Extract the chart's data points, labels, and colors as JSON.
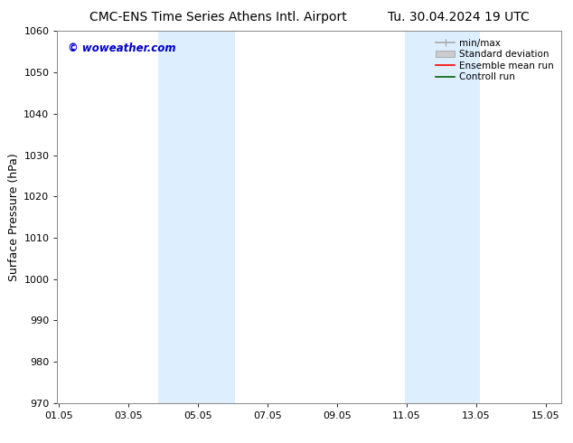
{
  "title_left": "CMC-ENS Time Series Athens Intl. Airport",
  "title_right": "Tu. 30.04.2024 19 UTC",
  "ylabel": "Surface Pressure (hPa)",
  "ylim": [
    970,
    1060
  ],
  "yticks": [
    970,
    980,
    990,
    1000,
    1010,
    1020,
    1030,
    1040,
    1050,
    1060
  ],
  "xlim_start": 1.0,
  "xlim_end": 15.5,
  "xticks": [
    1.05,
    3.05,
    5.05,
    7.05,
    9.05,
    11.05,
    13.05,
    15.05
  ],
  "xticklabels": [
    "01.05",
    "03.05",
    "05.05",
    "07.05",
    "09.05",
    "11.05",
    "13.05",
    "15.05"
  ],
  "shaded_regions": [
    {
      "xmin": 3.9,
      "xmax": 6.1,
      "color": "#ddeeff"
    },
    {
      "xmin": 11.0,
      "xmax": 13.15,
      "color": "#ddeeff"
    }
  ],
  "watermark": "© woweather.com",
  "watermark_color": "#0000cc",
  "legend_items": [
    {
      "label": "min/max",
      "color": "#aaaaaa",
      "lw": 1.2,
      "ls": "-"
    },
    {
      "label": "Standard deviation",
      "color": "#cccccc",
      "lw": 6,
      "ls": "-"
    },
    {
      "label": "Ensemble mean run",
      "color": "red",
      "lw": 1.2,
      "ls": "-"
    },
    {
      "label": "Controll run",
      "color": "darkgreen",
      "lw": 1.2,
      "ls": "-"
    }
  ],
  "bg_color": "#ffffff",
  "title_fontsize": 10,
  "tick_fontsize": 8,
  "ylabel_fontsize": 9,
  "legend_fontsize": 7.5,
  "watermark_fontsize": 8.5
}
